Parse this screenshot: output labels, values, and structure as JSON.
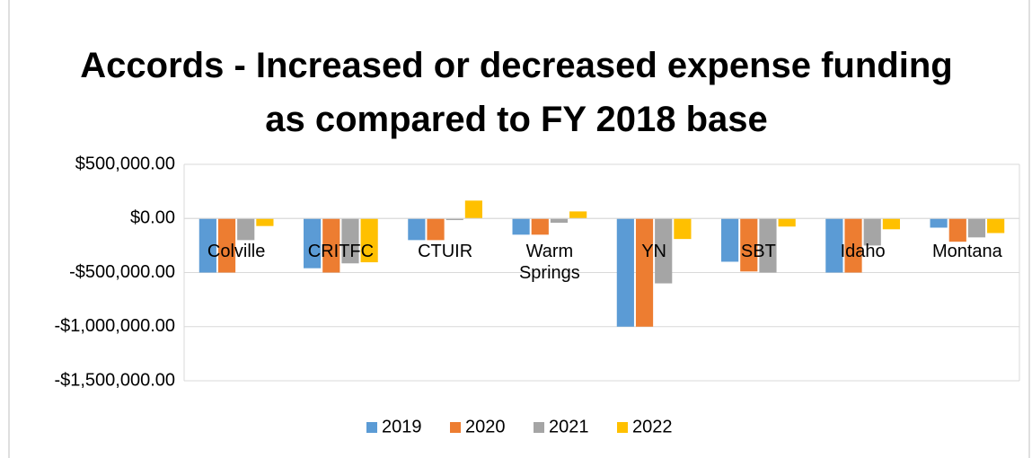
{
  "chart_data": {
    "type": "bar",
    "title": "Accords - Increased or decreased expense funding as compared to FY 2018 base",
    "categories": [
      "Colville",
      "CRITFC",
      "CTUIR",
      "Warm Springs",
      "YN",
      "SBT",
      "Idaho",
      "Montana"
    ],
    "series": [
      {
        "name": "2019",
        "color": "#5b9bd5",
        "values": [
          -500000,
          -460000,
          -200000,
          -150000,
          -1000000,
          -400000,
          -500000,
          -85000
        ]
      },
      {
        "name": "2020",
        "color": "#ed7d31",
        "values": [
          -500000,
          -500000,
          -200000,
          -150000,
          -1000000,
          -490000,
          -500000,
          -215000
        ]
      },
      {
        "name": "2021",
        "color": "#a5a5a5",
        "values": [
          -200000,
          -415000,
          -15000,
          -40000,
          -600000,
          -500000,
          -250000,
          -175000
        ]
      },
      {
        "name": "2022",
        "color": "#ffc000",
        "values": [
          -70000,
          -405000,
          165000,
          65000,
          -190000,
          -75000,
          -100000,
          -135000
        ]
      }
    ],
    "ylim": [
      -1500000,
      500000
    ],
    "yticks": [
      {
        "value": -1500000,
        "label": "-$1,500,000.00"
      },
      {
        "value": -1000000,
        "label": "-$1,000,000.00"
      },
      {
        "value": -500000,
        "label": "-$500,000.00"
      },
      {
        "value": 0,
        "label": "$0.00"
      },
      {
        "value": 500000,
        "label": "$500,000.00"
      }
    ],
    "grid": true,
    "legend": "bottom"
  }
}
